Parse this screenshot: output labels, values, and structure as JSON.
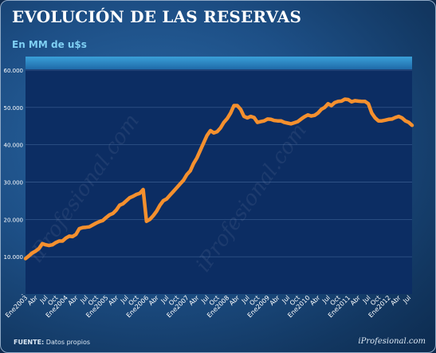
{
  "header": {
    "title": "EVOLUCIÓN DE LAS RESERVAS",
    "subtitle": "En MM de u$s"
  },
  "footer": {
    "source_label": "FUENTE:",
    "source_text": "Datos propios",
    "brand": "iProfesional.com"
  },
  "watermarks": [
    "iProfesional.com",
    "iProfesional.com"
  ],
  "colors": {
    "line": "#f5902e",
    "plot_bg": "#0c2d63",
    "plot_band": "#2f8fc8"
  },
  "chart_data": {
    "type": "line",
    "title": "EVOLUCIÓN DE LAS RESERVAS",
    "subtitle": "En MM de u$s",
    "xlabel": "",
    "ylabel": "",
    "ylim": [
      0,
      60000
    ],
    "yticks": [
      0,
      10000,
      20000,
      30000,
      40000,
      50000,
      60000
    ],
    "ytick_labels": [
      "-",
      "10.000",
      "20.000",
      "30.000",
      "40.000",
      "50.000",
      "60.000"
    ],
    "grid": true,
    "legend": "none",
    "x_tick_labels": [
      "Ene2003",
      "Abr",
      "Jul",
      "Oct",
      "Ene2004",
      "Abr",
      "Jul",
      "Oct",
      "Ene2005",
      "Abr",
      "Jul",
      "Oct",
      "Ene2006",
      "Abr",
      "Jul",
      "Oct",
      "Ene2007",
      "Abr",
      "Jul",
      "Oct",
      "Ene2008",
      "Abr",
      "Jul",
      "Oct",
      "Ene2009",
      "Abr",
      "Jul",
      "Oct",
      "Ene2010",
      "Abr",
      "Jul",
      "Oct",
      "Ene2011",
      "Abr",
      "Jul",
      "Oct",
      "Ene2012",
      "Abr",
      "Jul"
    ],
    "x": [
      "2003-01",
      "2003-02",
      "2003-03",
      "2003-04",
      "2003-05",
      "2003-06",
      "2003-07",
      "2003-08",
      "2003-09",
      "2003-10",
      "2003-11",
      "2003-12",
      "2004-01",
      "2004-02",
      "2004-03",
      "2004-04",
      "2004-05",
      "2004-06",
      "2004-07",
      "2004-08",
      "2004-09",
      "2004-10",
      "2004-11",
      "2004-12",
      "2005-01",
      "2005-02",
      "2005-03",
      "2005-04",
      "2005-05",
      "2005-06",
      "2005-07",
      "2005-08",
      "2005-09",
      "2005-10",
      "2005-11",
      "2005-12",
      "2006-01",
      "2006-02",
      "2006-03",
      "2006-04",
      "2006-05",
      "2006-06",
      "2006-07",
      "2006-08",
      "2006-09",
      "2006-10",
      "2006-11",
      "2006-12",
      "2007-01",
      "2007-02",
      "2007-03",
      "2007-04",
      "2007-05",
      "2007-06",
      "2007-07",
      "2007-08",
      "2007-09",
      "2007-10",
      "2007-11",
      "2007-12",
      "2008-01",
      "2008-02",
      "2008-03",
      "2008-04",
      "2008-05",
      "2008-06",
      "2008-07",
      "2008-08",
      "2008-09",
      "2008-10",
      "2008-11",
      "2008-12",
      "2009-01",
      "2009-02",
      "2009-03",
      "2009-04",
      "2009-05",
      "2009-06",
      "2009-07",
      "2009-08",
      "2009-09",
      "2009-10",
      "2009-11",
      "2009-12",
      "2010-01",
      "2010-02",
      "2010-03",
      "2010-04",
      "2010-05",
      "2010-06",
      "2010-07",
      "2010-08",
      "2010-09",
      "2010-10",
      "2010-11",
      "2010-12",
      "2011-01",
      "2011-02",
      "2011-03",
      "2011-04",
      "2011-05",
      "2011-06",
      "2011-07",
      "2011-08",
      "2011-09",
      "2011-10",
      "2011-11",
      "2011-12",
      "2012-01",
      "2012-02",
      "2012-03",
      "2012-04",
      "2012-05",
      "2012-06",
      "2012-07",
      "2012-08"
    ],
    "series": [
      {
        "values": [
          9500,
          10200,
          11000,
          11500,
          12200,
          13500,
          13200,
          13000,
          13200,
          13800,
          14200,
          14200,
          15000,
          15500,
          15400,
          16000,
          17500,
          17800,
          17900,
          18000,
          18500,
          19000,
          19400,
          19700,
          20500,
          21200,
          21600,
          22500,
          23800,
          24200,
          25000,
          25800,
          26200,
          26700,
          27000,
          28000,
          19500,
          20000,
          21000,
          22200,
          23800,
          25000,
          25500,
          26500,
          27500,
          28500,
          29500,
          30500,
          32000,
          33000,
          35000,
          36500,
          38500,
          40500,
          42500,
          43800,
          43200,
          43500,
          44500,
          46000,
          47000,
          48500,
          50500,
          50500,
          49500,
          47600,
          47200,
          47600,
          47300,
          46000,
          46200,
          46400,
          46900,
          46800,
          46500,
          46400,
          46400,
          46000,
          45800,
          45600,
          45900,
          46200,
          46900,
          47500,
          48000,
          47700,
          47900,
          48500,
          49500,
          50000,
          51000,
          50500,
          51300,
          51600,
          51700,
          52200,
          52100,
          51500,
          51800,
          51700,
          51600,
          51600,
          51000,
          48500,
          47200,
          46400,
          46400,
          46600,
          46800,
          46900,
          47300,
          47600,
          47200,
          46400,
          46000,
          45200
        ]
      }
    ]
  }
}
